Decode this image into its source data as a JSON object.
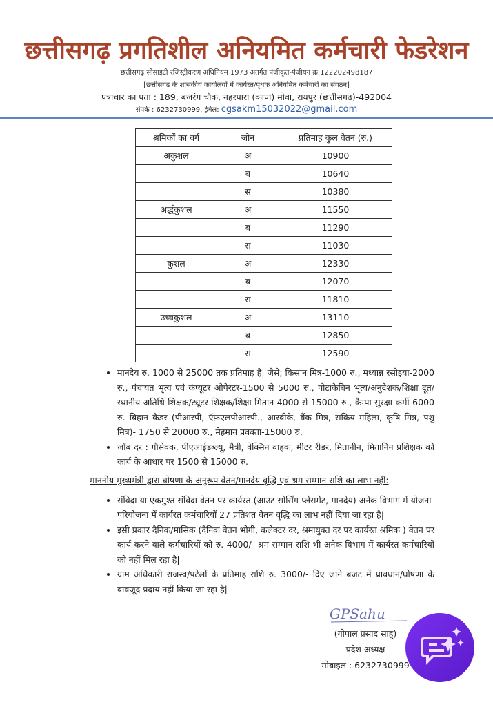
{
  "header": {
    "title": "छत्तीसगढ़ प्रगतिशील अनियमित कर्मचारी फेडरेशन",
    "registration": "छत्तीसगढ़ सोसाइटी रजिस्ट्रीकरण अधिनियम 1973 अतर्गत पंजीकृत-पंजीयन क्र.122202498187",
    "tagline": "[छत्तीसगढ़ के शासकीय कार्यालयों में कार्यरत/पृथक अनियमित कर्मचारी का संगठन]",
    "address": "पत्राचार का पता : 189, बजरंग चौक, नहरपारा (कापा) मोवा, रायपुर (छत्तीसगढ़)-492004",
    "contact": "संपर्क : 6232730999, ईमेल:",
    "email": "cgsakm15032022@gmail.com"
  },
  "table": {
    "headers": [
      "श्रमिकों का वर्ग",
      "जोन",
      "प्रतिमाह कुल वेतन (रु.)"
    ],
    "rows": [
      [
        "अकुशल",
        "अ",
        "10900"
      ],
      [
        "",
        "ब",
        "10640"
      ],
      [
        "",
        "स",
        "10380"
      ],
      [
        "अर्द्धकुशल",
        "अ",
        "11550"
      ],
      [
        "",
        "ब",
        "11290"
      ],
      [
        "",
        "स",
        "11030"
      ],
      [
        "कुशल",
        "अ",
        "12330"
      ],
      [
        "",
        "ब",
        "12070"
      ],
      [
        "",
        "स",
        "11810"
      ],
      [
        "उच्चकुशल",
        "अ",
        "13110"
      ],
      [
        "",
        "ब",
        "12850"
      ],
      [
        "",
        "स",
        "12590"
      ]
    ]
  },
  "bullets1": [
    "मानदेय रु. 1000 से 25000 तक प्रतिमाह है| जैसे; किसान मित्र-1000 रु., मध्यान्न रसोइया-2000 रु., पंचायत भृत्य एवं कंप्यूटर ओपेरटर-1500 से 5000 रु., पोटाकेबिन भृत्य/अनुदेशक/शिक्षा दूत/स्थानीय अतिथि शिक्षक/ट्यूटर शिक्षक/शिक्षा मितान-4000 से 15000 रु., कैम्पा सुरक्षा कर्मी-6000 रु. बिहान कैडर (पीआरपी, ऍफ़एलपीआरपी., आरबीके, बैंक मित्र, सक्रिय महिला, कृषि मित्र, पशु मित्र)- 1750 से 20000 रु., मेहमान प्रवक्ता-15000 रु.",
    "जॉब दर : गौसेवक, पीएआईडब्ल्यू, मैत्री, वेक्सिन वाहक, मीटर रीडर, मितानीन, मितानिन प्रशिक्षक को कार्य के आधार पर 1500 से 15000 रु."
  ],
  "section_heading": "माननीय मुख्यमंत्री द्वारा घोषणा के अनुरूप वेतन/मानदेय वृद्धि एवं श्रम सम्मान राशि का लाभ नहीं:",
  "bullets2": [
    "संविदा या एकमुश्त संविदा वेतन पर कार्यरत (आउट सोर्सिंग-प्लेसमेंट, मानदेय) अनेक विभाग में योजना-परियोजना में कार्यरत कर्मचारियों 27 प्रतिशत वेतन वृद्धि का लाभ नहीं दिया जा रहा है|",
    "इसी प्रकार दैनिक/मासिक (दैनिक वेतन भोगी, कलेक्टर दर, श्रमायुक्त दर पर कार्यरत श्रमिक ) वेतन पर कार्य करने वाले कर्मचारियों को रु. 4000/- श्रम सम्मान राशि भी अनेक विभाग में कार्यरत कर्मचारियों को नहीं मिल रहा है|",
    "ग्राम अधिकारी राजस्व/पटेलों के प्रतिमाह राशि रु. 3000/- दिए जाने बजट में प्रावधान/घोषणा के बावजूद प्रदाय नहीं किया जा रहा है|"
  ],
  "signature": {
    "scribble": "GPSahu",
    "name": "(गोपाल प्रसाद साहू)",
    "designation": "प्रदेश अध्यक्ष",
    "mobile": "मोबाइल : 6232730999"
  },
  "fab": {
    "icon": "ai-chat-sparkle-icon",
    "color": "#6a24dc"
  }
}
